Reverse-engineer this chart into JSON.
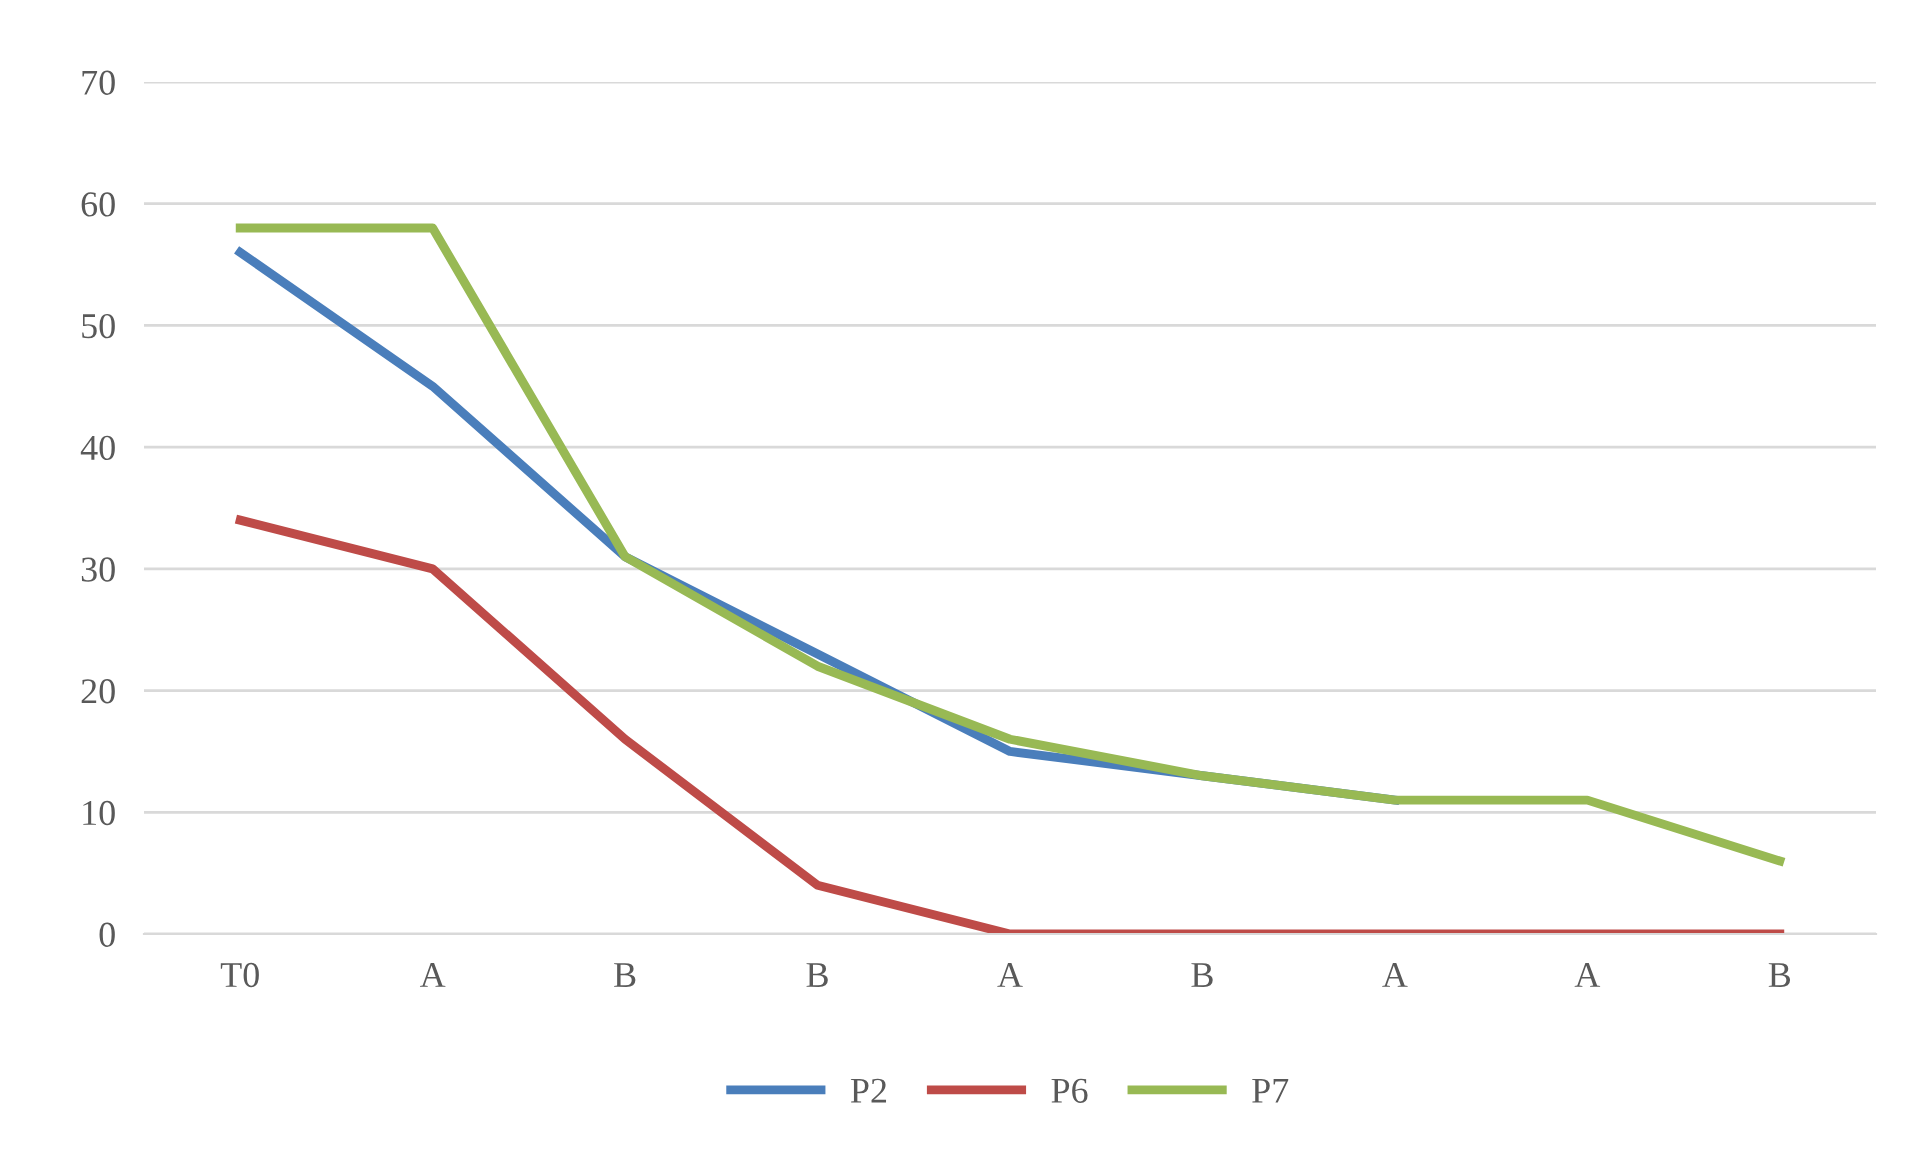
{
  "chart_data": {
    "type": "line",
    "categories": [
      "T0",
      "A",
      "B",
      "B",
      "A",
      "B",
      "A",
      "A",
      "B"
    ],
    "series": [
      {
        "name": "P2",
        "color": "#4a7ebb",
        "values": [
          56,
          45,
          31,
          23,
          15,
          13,
          11,
          null,
          null
        ]
      },
      {
        "name": "P6",
        "color": "#be4b48",
        "values": [
          34,
          30,
          16,
          4,
          0,
          0,
          0,
          0,
          0
        ]
      },
      {
        "name": "P7",
        "color": "#98b954",
        "values": [
          58,
          58,
          31,
          22,
          16,
          13,
          11,
          11,
          6
        ]
      }
    ],
    "ylim": [
      0,
      70
    ],
    "yticks": [
      0,
      10,
      20,
      30,
      40,
      50,
      60,
      70
    ],
    "grid": "y",
    "legend": "bottom",
    "marker": "none",
    "line_style": "solid"
  }
}
